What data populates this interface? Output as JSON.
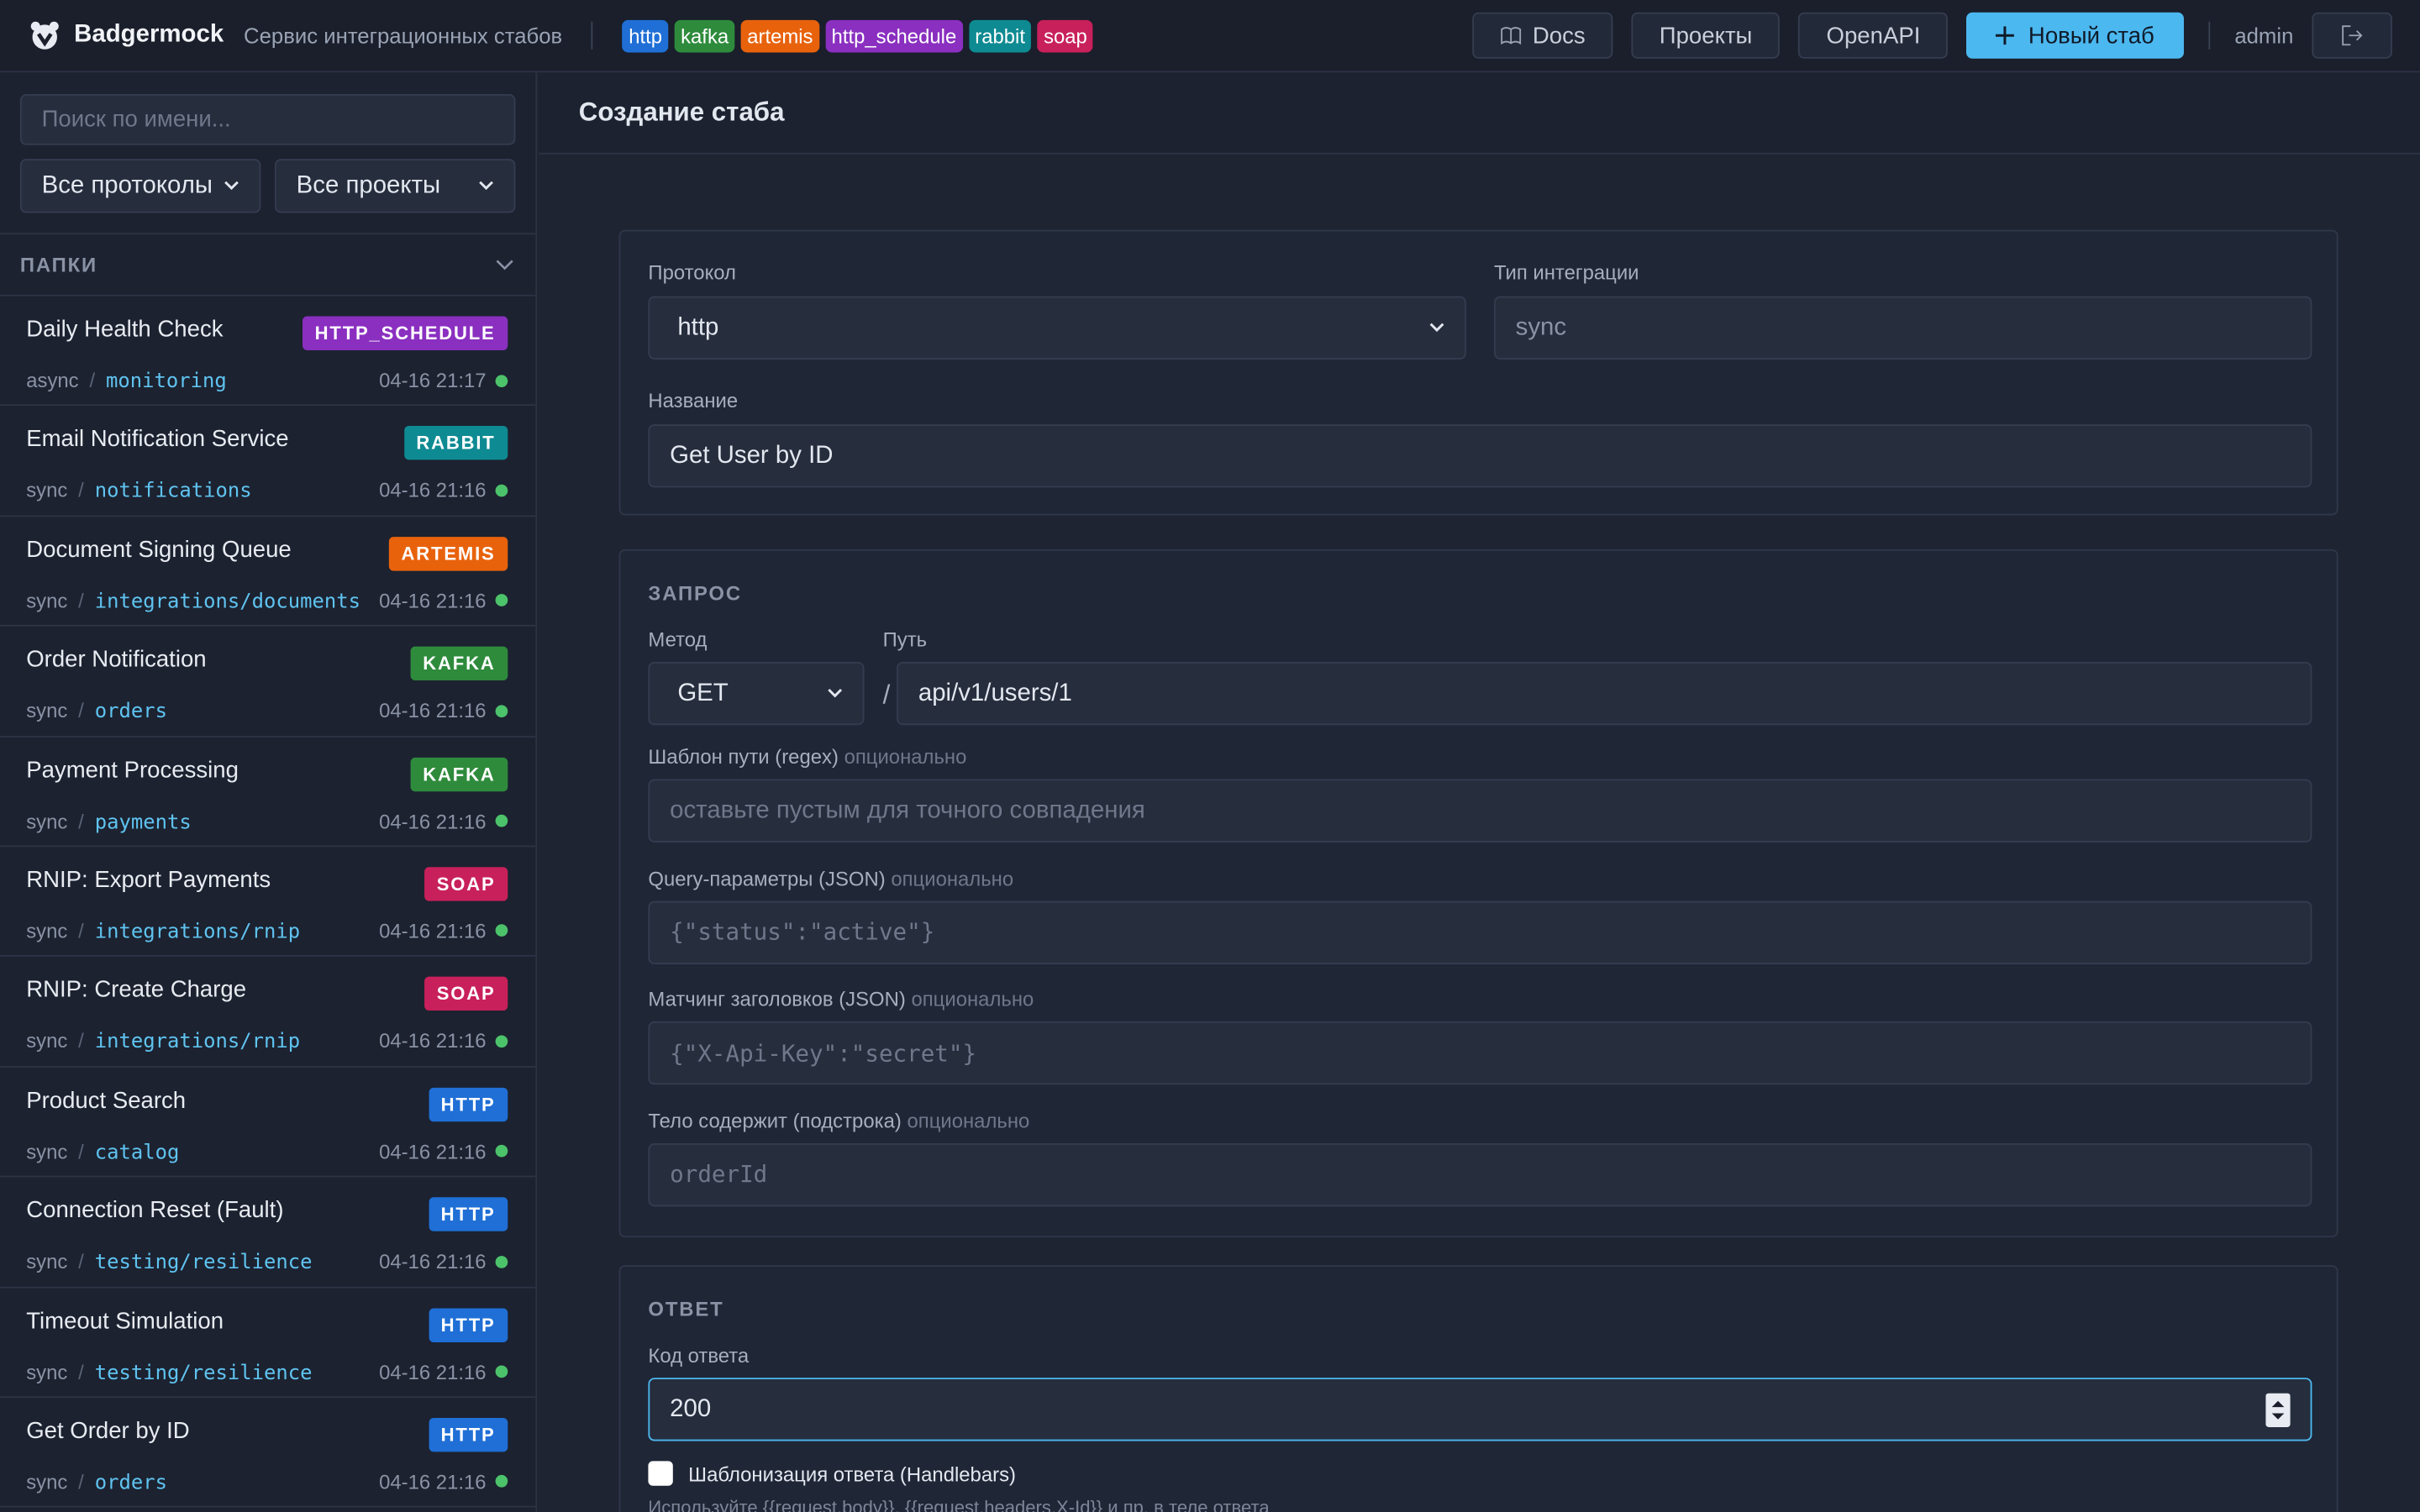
{
  "header": {
    "logo": "Badgermock",
    "subtitle": "Сервис интеграционных стабов",
    "protocols": [
      "http",
      "kafka",
      "artemis",
      "http_schedule",
      "rabbit",
      "soap"
    ],
    "nav": [
      "Docs",
      "Проекты",
      "OpenAPI"
    ],
    "new_button": "Новый стаб",
    "user": "admin"
  },
  "sidebar": {
    "search_placeholder": "Поиск по имени...",
    "protocol_filter": "Все протоколы",
    "project_filter": "Все проекты",
    "folders_label": "ПАПКИ",
    "separator": "/",
    "stubs": [
      {
        "name": "Daily Health Check",
        "badge": "HTTP_SCHEDULE",
        "mode": "async",
        "path": "monitoring",
        "time": "04-16 21:17"
      },
      {
        "name": "Email Notification Service",
        "badge": "RABBIT",
        "mode": "sync",
        "path": "notifications",
        "time": "04-16 21:16"
      },
      {
        "name": "Document Signing Queue",
        "badge": "ARTEMIS",
        "mode": "sync",
        "path": "integrations/documents",
        "time": "04-16 21:16"
      },
      {
        "name": "Order Notification",
        "badge": "KAFKA",
        "mode": "sync",
        "path": "orders",
        "time": "04-16 21:16"
      },
      {
        "name": "Payment Processing",
        "badge": "KAFKA",
        "mode": "sync",
        "path": "payments",
        "time": "04-16 21:16"
      },
      {
        "name": "RNIP: Export Payments",
        "badge": "SOAP",
        "mode": "sync",
        "path": "integrations/rnip",
        "time": "04-16 21:16"
      },
      {
        "name": "RNIP: Create Charge",
        "badge": "SOAP",
        "mode": "sync",
        "path": "integrations/rnip",
        "time": "04-16 21:16"
      },
      {
        "name": "Product Search",
        "badge": "HTTP",
        "mode": "sync",
        "path": "catalog",
        "time": "04-16 21:16"
      },
      {
        "name": "Connection Reset (Fault)",
        "badge": "HTTP",
        "mode": "sync",
        "path": "testing/resilience",
        "time": "04-16 21:16"
      },
      {
        "name": "Timeout Simulation",
        "badge": "HTTP",
        "mode": "sync",
        "path": "testing/resilience",
        "time": "04-16 21:16"
      },
      {
        "name": "Get Order by ID",
        "badge": "HTTP",
        "mode": "sync",
        "path": "orders",
        "time": "04-16 21:16"
      }
    ]
  },
  "form": {
    "title": "Создание стаба",
    "protocol_label": "Протокол",
    "protocol": "http",
    "integration_type_label": "Тип интеграции",
    "integration_type": "sync",
    "name_label": "Название",
    "name": "Get User by ID",
    "request": {
      "heading": "ЗАПРОС",
      "method_label": "Метод",
      "method": "GET",
      "path_label": "Путь",
      "path_prefix": "/",
      "path": "api/v1/users/1",
      "fields": [
        {
          "label": "Шаблон пути (regex)",
          "optional": "опционально",
          "placeholder": "оставьте пустым для точного совпадения"
        },
        {
          "label": "Query-параметры (JSON)",
          "optional": "опционально",
          "placeholder": "{\"status\":\"active\"}"
        },
        {
          "label": "Матчинг заголовков (JSON)",
          "optional": "опционально",
          "placeholder": "{\"X-Api-Key\":\"secret\"}"
        },
        {
          "label": "Тело содержит (подстрока)",
          "optional": "опционально",
          "placeholder": "orderId"
        }
      ]
    },
    "response": {
      "heading": "ОТВЕТ",
      "code_label": "Код ответа",
      "code": "200",
      "templating_label": "Шаблонизация ответа (Handlebars)",
      "hint": "Используйте {{request.body}}, {{request.headers.X-Id}} и пр. в теле ответа"
    }
  }
}
